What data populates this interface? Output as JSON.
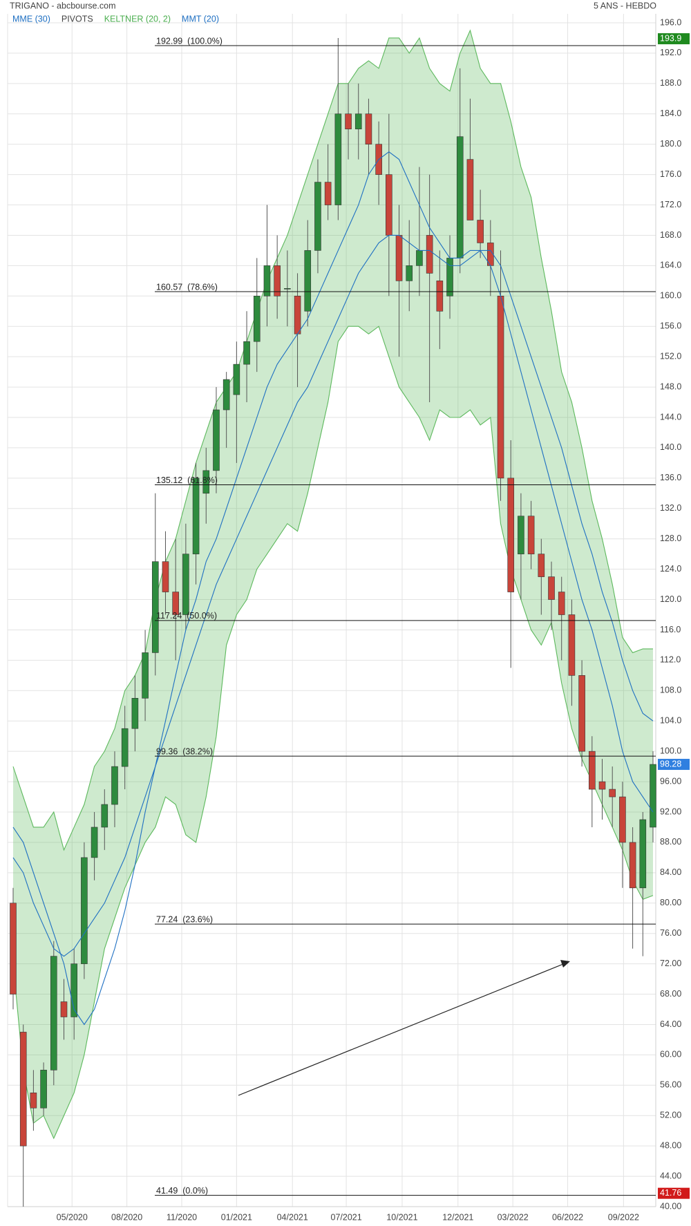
{
  "chart_data": {
    "type": "candlestick",
    "title": "TRIGANO - abcbourse.com",
    "period": "5 ANS - HEBDO",
    "legend": [
      {
        "label": "MME (30)",
        "color": "#1e6fc2"
      },
      {
        "label": "PIVOTS",
        "color": "#444444"
      },
      {
        "label": "KELTNER (20, 2)",
        "color": "#4caf50"
      },
      {
        "label": "MMT (20)",
        "color": "#1e6fc2"
      }
    ],
    "up_color": "#2e8b3e",
    "down_color": "#c8453a",
    "band_color": "#5cb85c",
    "ma_color": "#1e6fc2",
    "open": [
      80,
      63,
      55,
      53,
      58,
      67,
      65,
      72,
      86,
      90,
      93,
      98,
      103,
      107,
      113,
      125,
      121,
      118,
      126,
      134,
      137,
      145,
      147,
      151,
      154,
      160,
      164,
      161,
      160,
      158,
      166,
      175,
      172,
      184,
      182,
      184,
      180,
      176,
      168,
      162,
      164,
      168,
      162,
      160,
      165,
      178,
      170,
      167,
      160,
      136,
      126,
      131,
      126,
      123,
      121,
      118,
      110,
      100,
      96,
      95,
      94,
      88,
      82,
      90
    ],
    "high": [
      82,
      64,
      58,
      59,
      75,
      70,
      74,
      88,
      92,
      95,
      100,
      106,
      110,
      116,
      134,
      129,
      128,
      130,
      138,
      140,
      148,
      150,
      154,
      158,
      165,
      172,
      168,
      166,
      163,
      170,
      178,
      180,
      194,
      188,
      188,
      186,
      183,
      184,
      172,
      170,
      177,
      176,
      166,
      168,
      190,
      186,
      174,
      170,
      166,
      141,
      134,
      133,
      128,
      125,
      123,
      120,
      112,
      102,
      99,
      98,
      96,
      90,
      92,
      100
    ],
    "low": [
      66,
      40,
      50,
      52,
      56,
      62,
      62,
      70,
      83,
      87,
      90,
      95,
      100,
      104,
      110,
      118,
      112,
      116,
      122,
      130,
      134,
      140,
      138,
      146,
      150,
      156,
      157,
      156,
      148,
      156,
      163,
      170,
      170,
      178,
      178,
      176,
      172,
      160,
      152,
      158,
      160,
      146,
      153,
      157,
      163,
      170,
      165,
      160,
      133,
      111,
      120,
      124,
      118,
      116,
      112,
      106,
      98,
      90,
      91,
      90,
      82,
      74,
      73,
      88
    ],
    "close": [
      68,
      48,
      53,
      58,
      73,
      65,
      72,
      86,
      90,
      93,
      98,
      103,
      107,
      113,
      125,
      121,
      118,
      126,
      136,
      137,
      145,
      149,
      151,
      154,
      160,
      164,
      160,
      161,
      155,
      166,
      175,
      172,
      184,
      182,
      184,
      180,
      176,
      168,
      162,
      164,
      166,
      163,
      158,
      165,
      181,
      170,
      167,
      164,
      136,
      121,
      131,
      126,
      123,
      120,
      118,
      110,
      100,
      95,
      95,
      94,
      88,
      82,
      91,
      98.28
    ],
    "keltner_upper": [
      98,
      94,
      90,
      90,
      92,
      87,
      90,
      93,
      98,
      100,
      103,
      108,
      110,
      113,
      120,
      125,
      128,
      133,
      138,
      142,
      146,
      148,
      150,
      154,
      158,
      162,
      165,
      168,
      172,
      176,
      180,
      184,
      188,
      188,
      190,
      191,
      190,
      194,
      194,
      192,
      194,
      190,
      188,
      187,
      192,
      195,
      190,
      188,
      188,
      183,
      177,
      173,
      165,
      158,
      150,
      146,
      140,
      133,
      128,
      122,
      115,
      113,
      113.5,
      113.5
    ],
    "keltner_lower": [
      72,
      58,
      51,
      52,
      49,
      52,
      55,
      60,
      67,
      74,
      78,
      82,
      85,
      88,
      90,
      94,
      93,
      89,
      88,
      94,
      102,
      114,
      118,
      120,
      124,
      126,
      128,
      130,
      129,
      134,
      140,
      146,
      154,
      156,
      156,
      155,
      156,
      152,
      148,
      146,
      144,
      141,
      145,
      144,
      144,
      145,
      143,
      144,
      130,
      124,
      120,
      116,
      114,
      117,
      109,
      103,
      99,
      96,
      93,
      90,
      87,
      83,
      80.5,
      81
    ],
    "mme30": [
      86,
      84,
      80,
      77,
      74,
      73,
      74,
      76,
      78,
      80,
      83,
      86,
      90,
      94,
      98,
      102,
      106,
      110,
      114,
      118,
      122,
      125,
      128,
      131,
      134,
      137,
      140,
      143,
      146,
      148,
      151,
      154,
      157,
      160,
      163,
      165,
      167,
      168,
      168,
      167,
      166,
      166,
      165,
      164,
      164,
      165,
      166,
      166,
      164,
      160,
      156,
      152,
      148,
      144,
      140,
      135,
      130,
      126,
      121,
      117,
      112,
      108,
      105,
      104
    ],
    "mmt20": [
      90,
      88,
      84,
      80,
      76,
      72,
      66,
      64,
      66,
      70,
      74,
      79,
      85,
      92,
      98,
      104,
      110,
      116,
      120,
      125,
      128,
      132,
      136,
      140,
      144,
      148,
      151,
      153,
      155,
      157,
      160,
      163,
      166,
      169,
      172,
      176,
      178,
      179,
      178,
      175,
      172,
      169,
      167,
      165,
      165,
      166,
      166,
      164,
      160,
      155,
      150,
      145,
      140,
      135,
      130,
      125,
      120,
      116,
      111,
      106,
      100,
      96,
      94,
      92
    ],
    "fib_levels": [
      {
        "value": 192.99,
        "label": "192.99  (100.0%)"
      },
      {
        "value": 160.57,
        "label": "160.57  (78.6%)"
      },
      {
        "value": 135.12,
        "label": "135.12  (61.8%)"
      },
      {
        "value": 117.24,
        "label": "117.24  (50.0%)"
      },
      {
        "value": 99.36,
        "label": "99.36  (38.2%)"
      },
      {
        "value": 77.24,
        "label": "77.24  (23.6%)"
      },
      {
        "value": 41.49,
        "label": "41.49  (0.0%)"
      }
    ],
    "price_markers": [
      {
        "value": 193.9,
        "color": "#1f8a1f"
      },
      {
        "value": 98.28,
        "color": "#2f7fe0"
      },
      {
        "value": 41.76,
        "color": "#d11a1a"
      }
    ],
    "xlim": [
      0,
      63
    ],
    "xticks": [
      {
        "value": 5.8,
        "label": "05/2020"
      },
      {
        "value": 11.2,
        "label": "08/2020"
      },
      {
        "value": 16.6,
        "label": "11/2020"
      },
      {
        "value": 22,
        "label": "01/2021"
      },
      {
        "value": 27.5,
        "label": "04/2021"
      },
      {
        "value": 32.8,
        "label": "07/2021"
      },
      {
        "value": 38.3,
        "label": "10/2021"
      },
      {
        "value": 43.8,
        "label": "12/2021"
      },
      {
        "value": 49.2,
        "label": "03/2022"
      },
      {
        "value": 54.6,
        "label": "06/2022"
      },
      {
        "value": 60.1,
        "label": "09/2022"
      }
    ],
    "ylim": [
      40,
      196
    ],
    "yticks": [
      {
        "value": 40,
        "label": "40.00"
      },
      {
        "value": 44,
        "label": "44.00"
      },
      {
        "value": 48,
        "label": "48.00"
      },
      {
        "value": 52,
        "label": "52.00"
      },
      {
        "value": 56,
        "label": "56.00"
      },
      {
        "value": 60,
        "label": "60.00"
      },
      {
        "value": 64,
        "label": "64.00"
      },
      {
        "value": 68,
        "label": "68.00"
      },
      {
        "value": 72,
        "label": "72.00"
      },
      {
        "value": 76,
        "label": "76.00"
      },
      {
        "value": 80,
        "label": "80.00"
      },
      {
        "value": 84,
        "label": "84.00"
      },
      {
        "value": 88,
        "label": "88.00"
      },
      {
        "value": 92,
        "label": "92.00"
      },
      {
        "value": 96,
        "label": "96.00"
      },
      {
        "value": 100,
        "label": "100.0"
      },
      {
        "value": 104,
        "label": "104.0"
      },
      {
        "value": 108,
        "label": "108.0"
      },
      {
        "value": 112,
        "label": "112.0"
      },
      {
        "value": 116,
        "label": "116.0"
      },
      {
        "value": 120,
        "label": "120.0"
      },
      {
        "value": 124,
        "label": "124.0"
      },
      {
        "value": 128,
        "label": "128.0"
      },
      {
        "value": 132,
        "label": "132.0"
      },
      {
        "value": 136,
        "label": "136.0"
      },
      {
        "value": 140,
        "label": "140.0"
      },
      {
        "value": 144,
        "label": "144.0"
      },
      {
        "value": 148,
        "label": "148.0"
      },
      {
        "value": 152,
        "label": "152.0"
      },
      {
        "value": 156,
        "label": "156.0"
      },
      {
        "value": 160,
        "label": "160.0"
      },
      {
        "value": 164,
        "label": "164.0"
      },
      {
        "value": 168,
        "label": "168.0"
      },
      {
        "value": 172,
        "label": "172.0"
      },
      {
        "value": 176,
        "label": "176.0"
      },
      {
        "value": 180,
        "label": "180.0"
      },
      {
        "value": 184,
        "label": "184.0"
      },
      {
        "value": 188,
        "label": "188.0"
      },
      {
        "value": 192,
        "label": "192.0"
      },
      {
        "value": 196,
        "label": "196.0"
      }
    ],
    "grid": true
  }
}
